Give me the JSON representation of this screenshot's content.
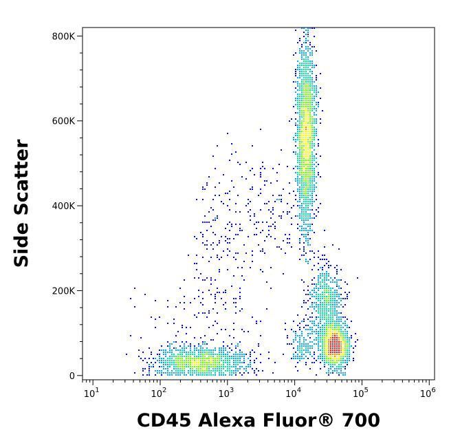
{
  "chart_data": {
    "type": "scatter",
    "subtype": "flow-cytometry-density-plot",
    "title": "",
    "xlabel": "CD45 Alexa Fluor® 700",
    "ylabel": "Side Scatter",
    "x_scale": "log",
    "y_scale": "linear",
    "xlim": [
      7,
      1200000
    ],
    "ylim": [
      -10000,
      820000
    ],
    "x_ticks": [
      {
        "value": 10,
        "base": "10",
        "exp": "1"
      },
      {
        "value": 100,
        "base": "10",
        "exp": "2"
      },
      {
        "value": 1000,
        "base": "10",
        "exp": "3"
      },
      {
        "value": 10000,
        "base": "10",
        "exp": "4"
      },
      {
        "value": 100000,
        "base": "10",
        "exp": "5"
      },
      {
        "value": 1000000,
        "base": "10",
        "exp": "6"
      }
    ],
    "y_ticks": [
      {
        "value": 0,
        "label": "0"
      },
      {
        "value": 200000,
        "label": "200K"
      },
      {
        "value": 400000,
        "label": "400K"
      },
      {
        "value": 600000,
        "label": "600K"
      },
      {
        "value": 800000,
        "label": "800K"
      }
    ],
    "grid": false,
    "legend": "none",
    "color_scale": [
      "#0000ff",
      "#00a0ff",
      "#00e0a0",
      "#70ff00",
      "#ffff00",
      "#ff8000",
      "#ff0000"
    ],
    "populations": [
      {
        "x_center": 400,
        "x_log_sd": 0.35,
        "y_center": 30000,
        "y_sd": 18000,
        "count": 1400
      },
      {
        "x_center": 15000,
        "x_log_sd": 0.07,
        "y_center": 560000,
        "y_sd": 110000,
        "count": 2300
      },
      {
        "x_center": 40000,
        "x_log_sd": 0.1,
        "y_center": 70000,
        "y_sd": 25000,
        "count": 1500
      },
      {
        "x_center": 30000,
        "x_log_sd": 0.12,
        "y_center": 170000,
        "y_sd": 45000,
        "count": 700
      },
      {
        "x_center": 13000,
        "x_log_sd": 0.12,
        "y_center": 70000,
        "y_sd": 25000,
        "count": 180
      },
      {
        "x_center": 800,
        "x_log_sd": 0.2,
        "y_center": 360000,
        "y_sd": 80000,
        "count": 110
      },
      {
        "x_center": 4000,
        "x_log_sd": 0.3,
        "y_center": 380000,
        "y_sd": 70000,
        "count": 160
      },
      {
        "x_center": 500,
        "x_log_sd": 0.45,
        "y_center": 160000,
        "y_sd": 70000,
        "count": 140
      }
    ]
  }
}
